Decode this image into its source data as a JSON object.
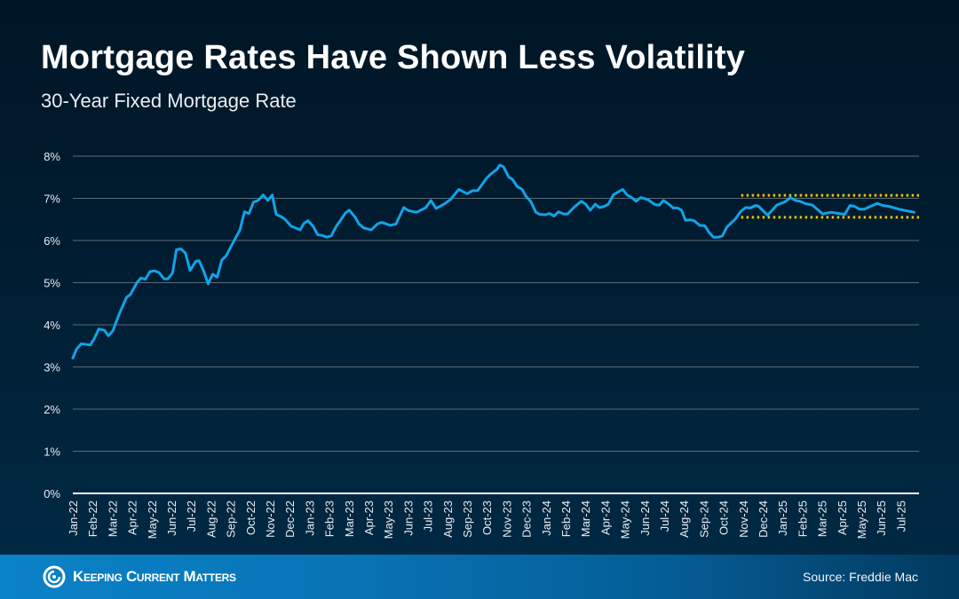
{
  "header": {
    "title": "Mortgage Rates Have Shown Less Volatility",
    "subtitle": "30-Year Fixed Mortgage Rate"
  },
  "footer": {
    "brand": "Keeping Current Matters",
    "source": "Source: Freddie Mac"
  },
  "colors": {
    "line": "#12a3e8",
    "band": "#f2c200",
    "grid": "#5c6a75",
    "baseline": "#ffffff"
  },
  "chart_data": {
    "type": "line",
    "title": "30-Year Fixed Mortgage Rate",
    "xlabel": "",
    "ylabel": "",
    "ylim": [
      0,
      8
    ],
    "y_ticks": [
      "0%",
      "1%",
      "2%",
      "3%",
      "4%",
      "5%",
      "6%",
      "7%",
      "8%"
    ],
    "x_ticks": [
      "Jan-22",
      "Feb-22",
      "Mar-22",
      "Apr-22",
      "May-22",
      "Jun-22",
      "Jul-22",
      "Aug-22",
      "Sep-22",
      "Oct-22",
      "Nov-22",
      "Dec-22",
      "Jan-23",
      "Feb-23",
      "Mar-23",
      "Apr-23",
      "May-23",
      "Jun-23",
      "Jul-23",
      "Aug-23",
      "Sep-23",
      "Oct-23",
      "Nov-23",
      "Dec-23",
      "Jan-24",
      "Feb-24",
      "Mar-24",
      "Apr-24",
      "May-24",
      "Jun-24",
      "Jul-24",
      "Aug-24",
      "Sep-24",
      "Oct-24",
      "Nov-24",
      "Dec-24",
      "Jan-25",
      "Feb-25",
      "Mar-25",
      "Apr-25",
      "May-25",
      "Jun-25",
      "Jul-25"
    ],
    "grid": true,
    "legend": "none",
    "series": [
      {
        "points": [
          [
            "2022-01-01",
            3.21
          ],
          [
            "2022-01-07",
            3.43
          ],
          [
            "2022-01-14",
            3.55
          ],
          [
            "2022-01-28",
            3.52
          ],
          [
            "2022-02-03",
            3.67
          ],
          [
            "2022-02-10",
            3.9
          ],
          [
            "2022-02-19",
            3.87
          ],
          [
            "2022-02-25",
            3.74
          ],
          [
            "2022-03-04",
            3.86
          ],
          [
            "2022-03-14",
            4.27
          ],
          [
            "2022-03-25",
            4.65
          ],
          [
            "2022-03-31",
            4.72
          ],
          [
            "2022-04-10",
            5.0
          ],
          [
            "2022-04-16",
            5.11
          ],
          [
            "2022-04-23",
            5.08
          ],
          [
            "2022-04-30",
            5.26
          ],
          [
            "2022-05-07",
            5.28
          ],
          [
            "2022-05-14",
            5.24
          ],
          [
            "2022-05-22",
            5.09
          ],
          [
            "2022-05-28",
            5.09
          ],
          [
            "2022-06-04",
            5.23
          ],
          [
            "2022-06-10",
            5.78
          ],
          [
            "2022-06-17",
            5.8
          ],
          [
            "2022-06-24",
            5.7
          ],
          [
            "2022-07-01",
            5.29
          ],
          [
            "2022-07-10",
            5.51
          ],
          [
            "2022-07-15",
            5.52
          ],
          [
            "2022-07-22",
            5.28
          ],
          [
            "2022-07-29",
            4.97
          ],
          [
            "2022-08-05",
            5.2
          ],
          [
            "2022-08-12",
            5.13
          ],
          [
            "2022-08-19",
            5.53
          ],
          [
            "2022-08-26",
            5.64
          ],
          [
            "2022-09-02",
            5.85
          ],
          [
            "2022-09-08",
            6.02
          ],
          [
            "2022-09-16",
            6.25
          ],
          [
            "2022-09-23",
            6.68
          ],
          [
            "2022-09-30",
            6.64
          ],
          [
            "2022-10-07",
            6.91
          ],
          [
            "2022-10-14",
            6.95
          ],
          [
            "2022-10-22",
            7.08
          ],
          [
            "2022-10-29",
            6.95
          ],
          [
            "2022-11-05",
            7.08
          ],
          [
            "2022-11-11",
            6.62
          ],
          [
            "2022-11-18",
            6.57
          ],
          [
            "2022-11-25",
            6.5
          ],
          [
            "2022-12-04",
            6.34
          ],
          [
            "2022-12-11",
            6.3
          ],
          [
            "2022-12-18",
            6.25
          ],
          [
            "2022-12-24",
            6.41
          ],
          [
            "2022-12-30",
            6.47
          ],
          [
            "2023-01-07",
            6.34
          ],
          [
            "2023-01-14",
            6.14
          ],
          [
            "2023-01-21",
            6.12
          ],
          [
            "2023-01-28",
            6.08
          ],
          [
            "2023-02-04",
            6.11
          ],
          [
            "2023-02-12",
            6.34
          ],
          [
            "2023-02-26",
            6.65
          ],
          [
            "2023-03-04",
            6.72
          ],
          [
            "2023-03-13",
            6.55
          ],
          [
            "2023-03-19",
            6.39
          ],
          [
            "2023-03-26",
            6.3
          ],
          [
            "2023-04-07",
            6.25
          ],
          [
            "2023-04-16",
            6.39
          ],
          [
            "2023-04-23",
            6.43
          ],
          [
            "2023-05-06",
            6.36
          ],
          [
            "2023-05-15",
            6.39
          ],
          [
            "2023-05-27",
            6.78
          ],
          [
            "2023-06-03",
            6.71
          ],
          [
            "2023-06-16",
            6.67
          ],
          [
            "2023-06-30",
            6.78
          ],
          [
            "2023-07-08",
            6.95
          ],
          [
            "2023-07-16",
            6.76
          ],
          [
            "2023-07-28",
            6.86
          ],
          [
            "2023-08-07",
            6.97
          ],
          [
            "2023-08-20",
            7.21
          ],
          [
            "2023-09-02",
            7.11
          ],
          [
            "2023-09-10",
            7.18
          ],
          [
            "2023-09-18",
            7.18
          ],
          [
            "2023-10-02",
            7.48
          ],
          [
            "2023-10-09",
            7.58
          ],
          [
            "2023-10-18",
            7.69
          ],
          [
            "2023-10-22",
            7.79
          ],
          [
            "2023-10-28",
            7.75
          ],
          [
            "2023-11-05",
            7.51
          ],
          [
            "2023-11-11",
            7.45
          ],
          [
            "2023-11-18",
            7.28
          ],
          [
            "2023-11-26",
            7.21
          ],
          [
            "2023-12-02",
            7.04
          ],
          [
            "2023-12-09",
            6.93
          ],
          [
            "2023-12-17",
            6.67
          ],
          [
            "2023-12-23",
            6.62
          ],
          [
            "2024-01-01",
            6.61
          ],
          [
            "2024-01-07",
            6.64
          ],
          [
            "2024-01-14",
            6.58
          ],
          [
            "2024-01-21",
            6.68
          ],
          [
            "2024-01-29",
            6.63
          ],
          [
            "2024-02-04",
            6.63
          ],
          [
            "2024-02-14",
            6.79
          ],
          [
            "2024-02-25",
            6.93
          ],
          [
            "2024-03-03",
            6.86
          ],
          [
            "2024-03-10",
            6.72
          ],
          [
            "2024-03-18",
            6.86
          ],
          [
            "2024-03-24",
            6.78
          ],
          [
            "2024-03-30",
            6.8
          ],
          [
            "2024-04-07",
            6.86
          ],
          [
            "2024-04-15",
            7.09
          ],
          [
            "2024-04-29",
            7.21
          ],
          [
            "2024-05-06",
            7.08
          ],
          [
            "2024-05-13",
            7.02
          ],
          [
            "2024-05-20",
            6.93
          ],
          [
            "2024-05-27",
            7.02
          ],
          [
            "2024-06-07",
            6.97
          ],
          [
            "2024-06-18",
            6.85
          ],
          [
            "2024-06-25",
            6.84
          ],
          [
            "2024-07-01",
            6.95
          ],
          [
            "2024-07-08",
            6.88
          ],
          [
            "2024-07-16",
            6.77
          ],
          [
            "2024-07-23",
            6.77
          ],
          [
            "2024-07-29",
            6.72
          ],
          [
            "2024-08-04",
            6.48
          ],
          [
            "2024-08-12",
            6.49
          ],
          [
            "2024-08-18",
            6.46
          ],
          [
            "2024-08-26",
            6.36
          ],
          [
            "2024-09-03",
            6.35
          ],
          [
            "2024-09-09",
            6.2
          ],
          [
            "2024-09-16",
            6.08
          ],
          [
            "2024-09-24",
            6.08
          ],
          [
            "2024-09-30",
            6.11
          ],
          [
            "2024-10-07",
            6.32
          ],
          [
            "2024-10-20",
            6.51
          ],
          [
            "2024-10-29",
            6.7
          ],
          [
            "2024-11-05",
            6.78
          ],
          [
            "2024-11-12",
            6.77
          ],
          [
            "2024-11-20",
            6.83
          ],
          [
            "2024-11-25",
            6.81
          ],
          [
            "2024-12-09",
            6.6
          ],
          [
            "2024-12-23",
            6.84
          ],
          [
            "2025-01-05",
            6.92
          ],
          [
            "2025-01-13",
            7.02
          ],
          [
            "2025-01-21",
            6.95
          ],
          [
            "2025-01-28",
            6.93
          ],
          [
            "2025-02-04",
            6.88
          ],
          [
            "2025-02-16",
            6.84
          ],
          [
            "2025-03-04",
            6.63
          ],
          [
            "2025-03-17",
            6.67
          ],
          [
            "2025-04-07",
            6.62
          ],
          [
            "2025-04-15",
            6.83
          ],
          [
            "2025-04-22",
            6.81
          ],
          [
            "2025-04-30",
            6.74
          ],
          [
            "2025-05-07",
            6.74
          ],
          [
            "2025-05-27",
            6.88
          ],
          [
            "2025-06-05",
            6.83
          ],
          [
            "2025-06-14",
            6.81
          ],
          [
            "2025-06-30",
            6.74
          ],
          [
            "2025-07-23",
            6.67
          ]
        ]
      }
    ],
    "annotations": [
      {
        "type": "dotted-band",
        "upper": 7.07,
        "lower": 6.55,
        "from": "2024-10-29",
        "to": "2025-07-31"
      }
    ]
  }
}
